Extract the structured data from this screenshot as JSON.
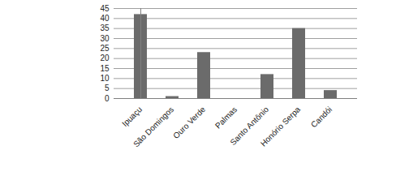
{
  "chart_data": {
    "type": "bar",
    "categories": [
      "Ipuaçu",
      "São Domingos",
      "Ouro Verde",
      "Palmas",
      "Santo Antônio",
      "Honório Serpa",
      "Candói"
    ],
    "values": [
      42,
      1,
      23,
      0,
      12,
      35,
      4
    ],
    "color": "#6b6b6b",
    "ylim": [
      0,
      45
    ],
    "yticks": [
      0,
      5,
      10,
      15,
      20,
      25,
      30,
      35,
      40,
      45
    ],
    "grid": true
  }
}
